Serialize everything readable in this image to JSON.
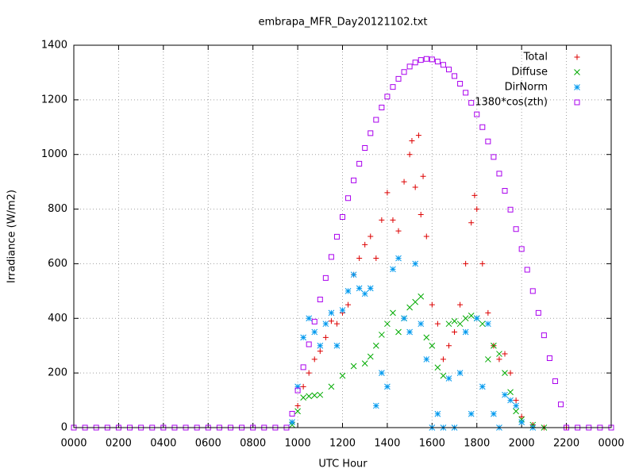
{
  "chart_data": {
    "type": "scatter",
    "title": "embrapa_MFR_Day20121102.txt",
    "xlabel": "UTC Hour",
    "ylabel": "Irradiance (W/m2)",
    "xlim": [
      0,
      24
    ],
    "ylim": [
      0,
      1400
    ],
    "xticks": [
      {
        "value": 0,
        "label": "0000"
      },
      {
        "value": 2,
        "label": "0200"
      },
      {
        "value": 4,
        "label": "0400"
      },
      {
        "value": 6,
        "label": "0600"
      },
      {
        "value": 8,
        "label": "0800"
      },
      {
        "value": 10,
        "label": "1000"
      },
      {
        "value": 12,
        "label": "1200"
      },
      {
        "value": 14,
        "label": "1400"
      },
      {
        "value": 16,
        "label": "1600"
      },
      {
        "value": 18,
        "label": "1800"
      },
      {
        "value": 20,
        "label": "2000"
      },
      {
        "value": 22,
        "label": "2200"
      },
      {
        "value": 24,
        "label": "0000"
      }
    ],
    "yticks": [
      0,
      200,
      400,
      600,
      800,
      1000,
      1200,
      1400
    ],
    "grid": true,
    "legend": "top-right",
    "series": [
      {
        "name": "Total",
        "color": "#dd0000",
        "marker": "plus",
        "x": [
          9.75,
          10,
          10.25,
          10.5,
          10.75,
          11,
          11.25,
          11.5,
          11.75,
          12,
          12.25,
          12.5,
          12.75,
          13,
          13.25,
          13.5,
          13.75,
          14,
          14.25,
          14.5,
          14.75,
          15,
          15.1,
          15.25,
          15.4,
          15.5,
          15.6,
          15.75,
          16,
          16.25,
          16.5,
          16.75,
          17,
          17.25,
          17.5,
          17.75,
          17.9,
          18,
          18.25,
          18.5,
          18.75,
          19,
          19.25,
          19.5,
          19.75,
          20,
          20.5,
          21,
          22
        ],
        "values": [
          20,
          80,
          150,
          200,
          250,
          280,
          330,
          390,
          380,
          420,
          450,
          560,
          620,
          670,
          700,
          620,
          760,
          860,
          760,
          720,
          900,
          1000,
          1050,
          880,
          1070,
          780,
          920,
          700,
          450,
          380,
          250,
          300,
          350,
          450,
          600,
          750,
          850,
          800,
          600,
          420,
          300,
          250,
          270,
          200,
          100,
          40,
          10,
          0,
          0
        ]
      },
      {
        "name": "Diffuse",
        "color": "#00aa00",
        "marker": "cross",
        "x": [
          9.75,
          10,
          10.25,
          10.5,
          10.75,
          11,
          11.5,
          12,
          12.5,
          13,
          13.25,
          13.5,
          13.75,
          14,
          14.25,
          14.5,
          14.75,
          15,
          15.25,
          15.5,
          15.75,
          16,
          16.25,
          16.5,
          16.75,
          17,
          17.25,
          17.5,
          17.75,
          18,
          18.25,
          18.5,
          18.75,
          19,
          19.25,
          19.5,
          19.75,
          20,
          20.5,
          21
        ],
        "values": [
          10,
          60,
          110,
          115,
          118,
          120,
          150,
          190,
          225,
          235,
          260,
          300,
          340,
          380,
          420,
          350,
          400,
          440,
          460,
          480,
          330,
          300,
          220,
          190,
          380,
          390,
          380,
          400,
          410,
          400,
          380,
          250,
          300,
          270,
          200,
          130,
          60,
          30,
          10,
          0
        ]
      },
      {
        "name": "DirNorm",
        "color": "#0099ee",
        "marker": "star",
        "x": [
          9.75,
          10,
          10.25,
          10.5,
          10.75,
          11,
          11.25,
          11.5,
          11.75,
          12,
          12.25,
          12.5,
          12.75,
          13,
          13.25,
          13.5,
          13.75,
          14,
          14.25,
          14.5,
          14.75,
          15,
          15.25,
          15.5,
          15.75,
          16,
          16.25,
          16.5,
          16.75,
          17,
          17.25,
          17.5,
          17.75,
          18,
          18.25,
          18.5,
          18.75,
          19,
          19.25,
          19.5,
          19.75,
          20,
          20.5
        ],
        "values": [
          20,
          150,
          330,
          400,
          350,
          300,
          380,
          420,
          300,
          430,
          500,
          560,
          510,
          490,
          510,
          80,
          200,
          150,
          580,
          620,
          400,
          350,
          600,
          380,
          250,
          0,
          50,
          0,
          180,
          0,
          200,
          350,
          50,
          400,
          150,
          380,
          50,
          0,
          120,
          100,
          80,
          20,
          0
        ]
      },
      {
        "name": "1380*cos(zth)",
        "color": "#aa00ee",
        "marker": "square",
        "x": [
          0,
          0.5,
          1,
          1.5,
          2,
          2.5,
          3,
          3.5,
          4,
          4.5,
          5,
          5.5,
          6,
          6.5,
          7,
          7.5,
          8,
          8.5,
          9,
          9.5,
          9.75,
          10,
          10.25,
          10.5,
          10.75,
          11,
          11.25,
          11.5,
          11.75,
          12,
          12.25,
          12.5,
          12.75,
          13,
          13.25,
          13.5,
          13.75,
          14,
          14.25,
          14.5,
          14.75,
          15,
          15.25,
          15.5,
          15.75,
          16,
          16.25,
          16.5,
          16.75,
          17,
          17.25,
          17.5,
          17.75,
          18,
          18.25,
          18.5,
          18.75,
          19,
          19.25,
          19.5,
          19.75,
          20,
          20.25,
          20.5,
          20.75,
          21,
          21.25,
          21.5,
          21.75,
          22,
          22.5,
          23,
          23.5,
          24
        ],
        "values": [
          0,
          0,
          0,
          0,
          0,
          0,
          0,
          0,
          0,
          0,
          0,
          0,
          0,
          0,
          0,
          0,
          0,
          0,
          0,
          0,
          51,
          136,
          221,
          305,
          388,
          469,
          548,
          625,
          699,
          771,
          840,
          905,
          966,
          1024,
          1078,
          1127,
          1172,
          1212,
          1247,
          1277,
          1302,
          1322,
          1337,
          1346,
          1350,
          1348,
          1340,
          1328,
          1311,
          1287,
          1259,
          1226,
          1189,
          1147,
          1100,
          1048,
          991,
          930,
          867,
          798,
          727,
          654,
          578,
          500,
          420,
          338,
          254,
          170,
          85,
          0,
          0,
          0,
          0,
          0
        ]
      }
    ]
  }
}
